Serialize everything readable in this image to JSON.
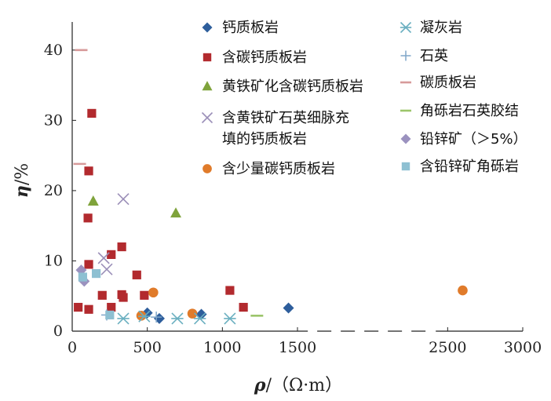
{
  "chart_data": {
    "type": "scatter",
    "xlabel": {
      "symbol": "ρ",
      "unit": "/（Ω·m）"
    },
    "ylabel": {
      "symbol": "η",
      "unit": "/%"
    },
    "xlim": [
      0,
      3000
    ],
    "ylim": [
      0,
      44
    ],
    "x_ticks": [
      0,
      500,
      1000,
      1500,
      2500,
      3000
    ],
    "y_ticks": [
      0,
      10,
      20,
      30,
      40
    ],
    "x_axis_break": [
      1600,
      2400
    ],
    "grid": false,
    "legend_position": "top-right",
    "series": [
      {
        "name": "钙质板岩",
        "marker": "diamond",
        "color": "#2E5E9C",
        "points": [
          [
            500,
            2.6
          ],
          [
            580,
            1.8
          ],
          [
            860,
            2.4
          ],
          [
            1440,
            3.3
          ]
        ]
      },
      {
        "name": "含碳钙质板岩",
        "marker": "square",
        "color": "#B22A2E",
        "points": [
          [
            40,
            3.4
          ],
          [
            110,
            3.1
          ],
          [
            110,
            9.5
          ],
          [
            105,
            16.1
          ],
          [
            110,
            22.8
          ],
          [
            130,
            31.0
          ],
          [
            200,
            5.1
          ],
          [
            260,
            3.4
          ],
          [
            260,
            10.9
          ],
          [
            330,
            12.0
          ],
          [
            330,
            5.2
          ],
          [
            340,
            4.8
          ],
          [
            430,
            8.0
          ],
          [
            480,
            5.1
          ],
          [
            1050,
            5.8
          ],
          [
            1140,
            3.4
          ]
        ]
      },
      {
        "name": "黄铁矿化含碳钙质板岩",
        "marker": "triangle",
        "color": "#7FA33B",
        "points": [
          [
            140,
            18.5
          ],
          [
            690,
            16.8
          ]
        ]
      },
      {
        "name": "含黄铁矿石英细脉充填的钙质板岩",
        "marker": "x",
        "color": "#9B8FB8",
        "points": [
          [
            210,
            10.4
          ],
          [
            230,
            8.8
          ],
          [
            340,
            18.8
          ]
        ]
      },
      {
        "name": "含少量碳钙质板岩",
        "marker": "circle",
        "color": "#E07B2A",
        "points": [
          [
            460,
            2.2
          ],
          [
            540,
            5.5
          ],
          [
            800,
            2.5
          ],
          [
            2600,
            5.8
          ]
        ]
      },
      {
        "name": "凝灰岩",
        "marker": "asterisk",
        "color": "#6AAFC0",
        "points": [
          [
            340,
            1.8
          ],
          [
            480,
            2.1
          ],
          [
            700,
            1.8
          ],
          [
            850,
            1.8
          ],
          [
            1050,
            1.8
          ]
        ]
      },
      {
        "name": "石英",
        "marker": "plus",
        "color": "#7FA6C9",
        "points": [
          [
            230,
            2.3
          ],
          [
            560,
            2.0
          ]
        ]
      },
      {
        "name": "碳质板岩",
        "marker": "dash",
        "color": "#D79A9A",
        "points": [
          [
            60,
            40.0
          ],
          [
            50,
            23.8
          ]
        ]
      },
      {
        "name": "角砾岩石英胶结",
        "marker": "dash",
        "color": "#9CC56B",
        "points": [
          [
            1230,
            2.2
          ]
        ]
      },
      {
        "name": "铅锌矿（＞5%）",
        "marker": "diamond",
        "color": "#9B92BF",
        "points": [
          [
            60,
            8.7
          ],
          [
            80,
            7.1
          ]
        ]
      },
      {
        "name": "含铅锌矿角砾岩",
        "marker": "square",
        "color": "#8EC0D2",
        "points": [
          [
            70,
            7.7
          ],
          [
            160,
            8.2
          ],
          [
            250,
            2.3
          ]
        ]
      }
    ]
  }
}
